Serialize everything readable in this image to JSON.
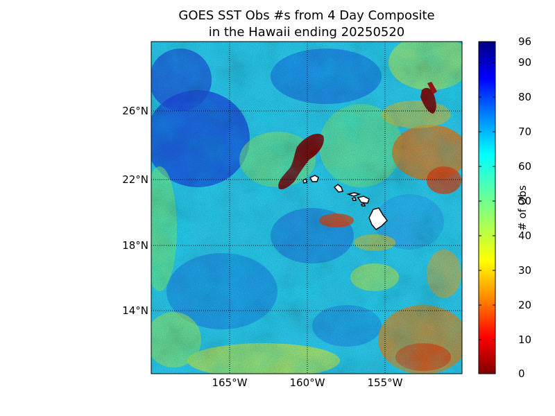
{
  "title": {
    "line1": "GOES SST Obs #s from 4 Day Composite",
    "line2": "in the Hawaii ending 20250520"
  },
  "map": {
    "lat_labels": [
      "26°N",
      "22°N",
      "18°N",
      "14°N"
    ],
    "lon_labels": [
      "165°W",
      "160°W",
      "155°W"
    ],
    "lat_range": [
      10,
      30
    ],
    "lon_range": [
      -170,
      -150
    ],
    "gridlines": "dotted black",
    "islands": [
      "Niihau",
      "Kauai",
      "Oahu",
      "Molokai",
      "Maui",
      "Lanai",
      "Kahoolawe",
      "Hawaii"
    ]
  },
  "colorbar": {
    "label": "# of Obs",
    "ticks": [
      "96",
      "90",
      "80",
      "70",
      "60",
      "50",
      "40",
      "30",
      "20",
      "10",
      "0"
    ],
    "range": [
      0,
      96
    ],
    "colormap": "jet",
    "stops": [
      "#7f0000",
      "#ff0000",
      "#ff8000",
      "#ffff00",
      "#80ff80",
      "#00ffff",
      "#0080ff",
      "#0000ff",
      "#00007f"
    ]
  }
}
